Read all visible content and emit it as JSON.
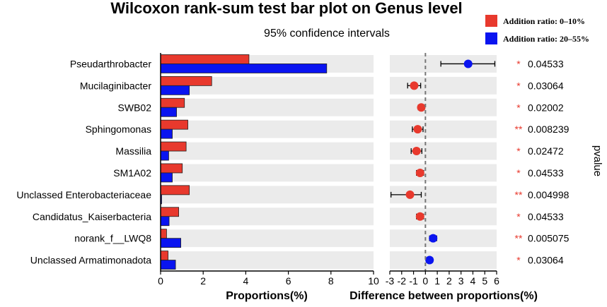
{
  "chart_data": {
    "type": "bar",
    "title": "Wilcoxon rank-sum test bar plot on Genus level",
    "subtitle": "95% confidence intervals",
    "xlabel_left": "Proportions(%)",
    "xlabel_right": "Difference between proportions(%)",
    "ylabel_right": "pvalue",
    "xlim_left": [
      0,
      10
    ],
    "xticks_left": [
      "0",
      "2",
      "4",
      "6",
      "8",
      "10"
    ],
    "xlim_right": [
      -3,
      6
    ],
    "xticks_right": [
      "-3",
      "-2",
      "-1",
      "0",
      "1",
      "2",
      "3",
      "4",
      "5",
      "6"
    ],
    "categories": [
      "Pseudarthrobacter",
      "Mucilaginibacter",
      "SWB02",
      "Sphingomonas",
      "Massilia",
      "SM1A02",
      "Unclassed Enterobacteriaceae",
      "Candidatus_Kaiserbacteria",
      "norank_f__LWQ8",
      "Unclassed Armatimonadota"
    ],
    "series": [
      {
        "name": "Addition ratio: 0–10%",
        "color": "#e8392d",
        "values": [
          4.15,
          2.4,
          1.12,
          1.28,
          1.2,
          1.02,
          1.35,
          0.85,
          0.28,
          0.35
        ]
      },
      {
        "name": "Addition ratio: 20–55%",
        "color": "#0a14f0",
        "values": [
          7.8,
          1.35,
          0.75,
          0.55,
          0.38,
          0.55,
          0.05,
          0.4,
          0.95,
          0.7
        ]
      }
    ],
    "difference": {
      "estimates": [
        3.6,
        -0.95,
        -0.35,
        -0.65,
        -0.75,
        -0.45,
        -1.3,
        -0.45,
        0.65,
        0.35
      ],
      "ci_low": [
        1.3,
        -1.5,
        -0.6,
        -1.1,
        -1.2,
        -0.75,
        -2.9,
        -0.75,
        0.35,
        0.1
      ],
      "ci_high": [
        5.85,
        -0.4,
        -0.1,
        -0.2,
        -0.3,
        -0.15,
        -0.35,
        -0.15,
        0.95,
        0.6
      ],
      "colors": [
        "#0a14f0",
        "#e8392d",
        "#e8392d",
        "#e8392d",
        "#e8392d",
        "#e8392d",
        "#e8392d",
        "#e8392d",
        "#0a14f0",
        "#0a14f0"
      ]
    },
    "pvalues": [
      "0.04533",
      "0.03064",
      "0.02002",
      "0.008239",
      "0.02472",
      "0.04533",
      "0.004998",
      "0.04533",
      "0.005075",
      "0.03064"
    ],
    "significance": [
      "*",
      "*",
      "*",
      "**",
      "*",
      "*",
      "**",
      "*",
      "**",
      "*"
    ],
    "legend_position": "top-right",
    "grid": false
  }
}
